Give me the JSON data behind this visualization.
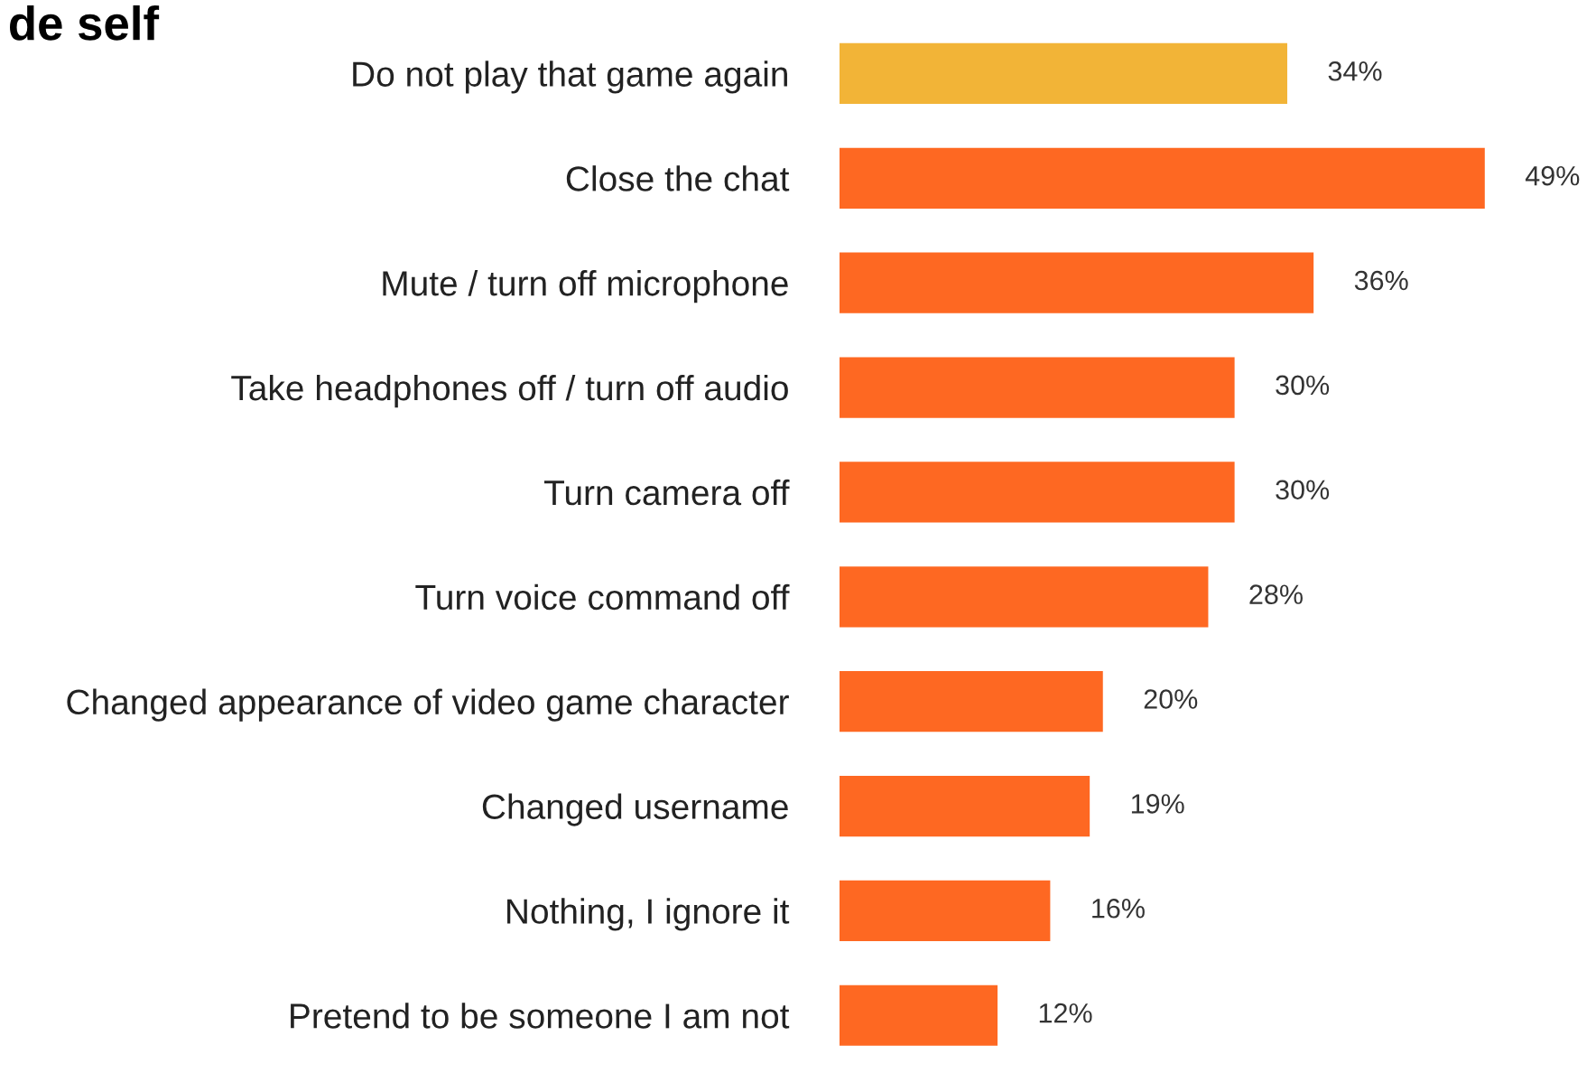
{
  "chart_data": {
    "type": "bar",
    "orientation": "horizontal",
    "title": "de self",
    "categories": [
      "Do not play that game again",
      "Close the chat",
      "Mute / turn off microphone",
      "Take headphones off / turn off audio",
      "Turn camera off",
      "Turn voice command off",
      "Changed appearance of video game character",
      "Changed username",
      "Nothing, I ignore it",
      "Pretend to be someone I am not"
    ],
    "values": [
      34,
      49,
      36,
      30,
      30,
      28,
      20,
      19,
      16,
      12
    ],
    "value_labels": [
      "34%",
      "49%",
      "36%",
      "30%",
      "30%",
      "28%",
      "20%",
      "19%",
      "16%",
      "12%"
    ],
    "colors": [
      "#f2b437",
      "#fe6822",
      "#fe6822",
      "#fe6822",
      "#fe6822",
      "#fe6822",
      "#fe6822",
      "#fe6822",
      "#fe6822",
      "#fe6822"
    ]
  }
}
